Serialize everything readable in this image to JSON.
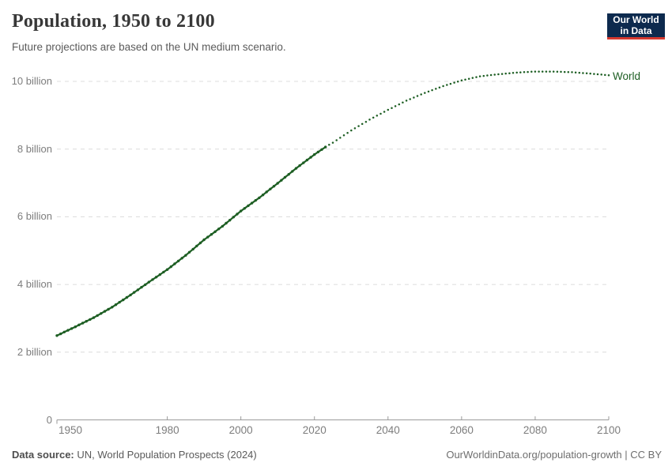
{
  "header": {
    "title": "Population, 1950 to 2100",
    "subtitle": "Future projections are based on the UN medium scenario."
  },
  "logo": {
    "line1": "Our World",
    "line2": "in Data",
    "bg_color": "#0d2a4e",
    "accent_color": "#d6392f",
    "text_color": "#ffffff"
  },
  "footer": {
    "source_label": "Data source:",
    "source_text": " UN, World Population Prospects (2024)",
    "link_text": "OurWorldinData.org/population-growth",
    "license_text": " | CC BY"
  },
  "chart_data": {
    "type": "line",
    "title": "Population, 1950 to 2100",
    "subtitle": "Future projections are based on the UN medium scenario.",
    "xlabel": "",
    "ylabel": "",
    "unit": "billion people",
    "x_range": [
      1950,
      2100
    ],
    "y_range": [
      0,
      10.45
    ],
    "grid": "horizontal-dashed",
    "legend_position": "end-of-line",
    "xticks": [
      1950,
      1980,
      2000,
      2020,
      2040,
      2060,
      2080,
      2100
    ],
    "yticks": [
      {
        "value": 0,
        "label": "0"
      },
      {
        "value": 2,
        "label": "2 billion"
      },
      {
        "value": 4,
        "label": "4 billion"
      },
      {
        "value": 6,
        "label": "6 billion"
      },
      {
        "value": 8,
        "label": "8 billion"
      },
      {
        "value": 10,
        "label": "10 billion"
      }
    ],
    "projection_start_year": 2023,
    "projection_style": "dotted",
    "colors": {
      "line": "#1d5e23",
      "gridline": "#dcdcdc",
      "axis": "#9a9a9a",
      "tick_label": "#7d7d7d"
    },
    "series": [
      {
        "name": "World",
        "color": "#1d5e23",
        "points": [
          [
            1950,
            2.49
          ],
          [
            1955,
            2.75
          ],
          [
            1960,
            3.02
          ],
          [
            1965,
            3.33
          ],
          [
            1970,
            3.69
          ],
          [
            1975,
            4.07
          ],
          [
            1980,
            4.44
          ],
          [
            1985,
            4.86
          ],
          [
            1990,
            5.32
          ],
          [
            1995,
            5.72
          ],
          [
            2000,
            6.17
          ],
          [
            2005,
            6.56
          ],
          [
            2010,
            6.99
          ],
          [
            2015,
            7.43
          ],
          [
            2020,
            7.84
          ],
          [
            2023,
            8.06
          ],
          [
            2025,
            8.19
          ],
          [
            2030,
            8.55
          ],
          [
            2035,
            8.87
          ],
          [
            2040,
            9.16
          ],
          [
            2045,
            9.43
          ],
          [
            2050,
            9.66
          ],
          [
            2055,
            9.86
          ],
          [
            2060,
            10.03
          ],
          [
            2065,
            10.15
          ],
          [
            2070,
            10.21
          ],
          [
            2075,
            10.26
          ],
          [
            2080,
            10.29
          ],
          [
            2085,
            10.29
          ],
          [
            2090,
            10.27
          ],
          [
            2095,
            10.23
          ],
          [
            2100,
            10.18
          ]
        ]
      }
    ]
  }
}
